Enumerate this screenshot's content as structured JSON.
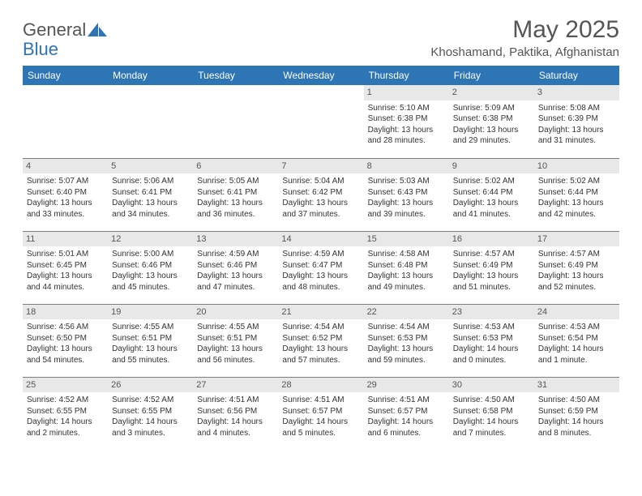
{
  "logo": {
    "text1": "General",
    "text2": "Blue"
  },
  "title": "May 2025",
  "location": "Khoshamand, Paktika, Afghanistan",
  "colors": {
    "header_bg": "#2e75b6",
    "daynum_bg": "#e8e8e8",
    "border": "#7f7f7f"
  },
  "weekdays": [
    "Sunday",
    "Monday",
    "Tuesday",
    "Wednesday",
    "Thursday",
    "Friday",
    "Saturday"
  ],
  "weeks": [
    [
      null,
      null,
      null,
      null,
      {
        "n": "1",
        "sr": "Sunrise: 5:10 AM",
        "ss": "Sunset: 6:38 PM",
        "d1": "Daylight: 13 hours",
        "d2": "and 28 minutes."
      },
      {
        "n": "2",
        "sr": "Sunrise: 5:09 AM",
        "ss": "Sunset: 6:38 PM",
        "d1": "Daylight: 13 hours",
        "d2": "and 29 minutes."
      },
      {
        "n": "3",
        "sr": "Sunrise: 5:08 AM",
        "ss": "Sunset: 6:39 PM",
        "d1": "Daylight: 13 hours",
        "d2": "and 31 minutes."
      }
    ],
    [
      {
        "n": "4",
        "sr": "Sunrise: 5:07 AM",
        "ss": "Sunset: 6:40 PM",
        "d1": "Daylight: 13 hours",
        "d2": "and 33 minutes."
      },
      {
        "n": "5",
        "sr": "Sunrise: 5:06 AM",
        "ss": "Sunset: 6:41 PM",
        "d1": "Daylight: 13 hours",
        "d2": "and 34 minutes."
      },
      {
        "n": "6",
        "sr": "Sunrise: 5:05 AM",
        "ss": "Sunset: 6:41 PM",
        "d1": "Daylight: 13 hours",
        "d2": "and 36 minutes."
      },
      {
        "n": "7",
        "sr": "Sunrise: 5:04 AM",
        "ss": "Sunset: 6:42 PM",
        "d1": "Daylight: 13 hours",
        "d2": "and 37 minutes."
      },
      {
        "n": "8",
        "sr": "Sunrise: 5:03 AM",
        "ss": "Sunset: 6:43 PM",
        "d1": "Daylight: 13 hours",
        "d2": "and 39 minutes."
      },
      {
        "n": "9",
        "sr": "Sunrise: 5:02 AM",
        "ss": "Sunset: 6:44 PM",
        "d1": "Daylight: 13 hours",
        "d2": "and 41 minutes."
      },
      {
        "n": "10",
        "sr": "Sunrise: 5:02 AM",
        "ss": "Sunset: 6:44 PM",
        "d1": "Daylight: 13 hours",
        "d2": "and 42 minutes."
      }
    ],
    [
      {
        "n": "11",
        "sr": "Sunrise: 5:01 AM",
        "ss": "Sunset: 6:45 PM",
        "d1": "Daylight: 13 hours",
        "d2": "and 44 minutes."
      },
      {
        "n": "12",
        "sr": "Sunrise: 5:00 AM",
        "ss": "Sunset: 6:46 PM",
        "d1": "Daylight: 13 hours",
        "d2": "and 45 minutes."
      },
      {
        "n": "13",
        "sr": "Sunrise: 4:59 AM",
        "ss": "Sunset: 6:46 PM",
        "d1": "Daylight: 13 hours",
        "d2": "and 47 minutes."
      },
      {
        "n": "14",
        "sr": "Sunrise: 4:59 AM",
        "ss": "Sunset: 6:47 PM",
        "d1": "Daylight: 13 hours",
        "d2": "and 48 minutes."
      },
      {
        "n": "15",
        "sr": "Sunrise: 4:58 AM",
        "ss": "Sunset: 6:48 PM",
        "d1": "Daylight: 13 hours",
        "d2": "and 49 minutes."
      },
      {
        "n": "16",
        "sr": "Sunrise: 4:57 AM",
        "ss": "Sunset: 6:49 PM",
        "d1": "Daylight: 13 hours",
        "d2": "and 51 minutes."
      },
      {
        "n": "17",
        "sr": "Sunrise: 4:57 AM",
        "ss": "Sunset: 6:49 PM",
        "d1": "Daylight: 13 hours",
        "d2": "and 52 minutes."
      }
    ],
    [
      {
        "n": "18",
        "sr": "Sunrise: 4:56 AM",
        "ss": "Sunset: 6:50 PM",
        "d1": "Daylight: 13 hours",
        "d2": "and 54 minutes."
      },
      {
        "n": "19",
        "sr": "Sunrise: 4:55 AM",
        "ss": "Sunset: 6:51 PM",
        "d1": "Daylight: 13 hours",
        "d2": "and 55 minutes."
      },
      {
        "n": "20",
        "sr": "Sunrise: 4:55 AM",
        "ss": "Sunset: 6:51 PM",
        "d1": "Daylight: 13 hours",
        "d2": "and 56 minutes."
      },
      {
        "n": "21",
        "sr": "Sunrise: 4:54 AM",
        "ss": "Sunset: 6:52 PM",
        "d1": "Daylight: 13 hours",
        "d2": "and 57 minutes."
      },
      {
        "n": "22",
        "sr": "Sunrise: 4:54 AM",
        "ss": "Sunset: 6:53 PM",
        "d1": "Daylight: 13 hours",
        "d2": "and 59 minutes."
      },
      {
        "n": "23",
        "sr": "Sunrise: 4:53 AM",
        "ss": "Sunset: 6:53 PM",
        "d1": "Daylight: 14 hours",
        "d2": "and 0 minutes."
      },
      {
        "n": "24",
        "sr": "Sunrise: 4:53 AM",
        "ss": "Sunset: 6:54 PM",
        "d1": "Daylight: 14 hours",
        "d2": "and 1 minute."
      }
    ],
    [
      {
        "n": "25",
        "sr": "Sunrise: 4:52 AM",
        "ss": "Sunset: 6:55 PM",
        "d1": "Daylight: 14 hours",
        "d2": "and 2 minutes."
      },
      {
        "n": "26",
        "sr": "Sunrise: 4:52 AM",
        "ss": "Sunset: 6:55 PM",
        "d1": "Daylight: 14 hours",
        "d2": "and 3 minutes."
      },
      {
        "n": "27",
        "sr": "Sunrise: 4:51 AM",
        "ss": "Sunset: 6:56 PM",
        "d1": "Daylight: 14 hours",
        "d2": "and 4 minutes."
      },
      {
        "n": "28",
        "sr": "Sunrise: 4:51 AM",
        "ss": "Sunset: 6:57 PM",
        "d1": "Daylight: 14 hours",
        "d2": "and 5 minutes."
      },
      {
        "n": "29",
        "sr": "Sunrise: 4:51 AM",
        "ss": "Sunset: 6:57 PM",
        "d1": "Daylight: 14 hours",
        "d2": "and 6 minutes."
      },
      {
        "n": "30",
        "sr": "Sunrise: 4:50 AM",
        "ss": "Sunset: 6:58 PM",
        "d1": "Daylight: 14 hours",
        "d2": "and 7 minutes."
      },
      {
        "n": "31",
        "sr": "Sunrise: 4:50 AM",
        "ss": "Sunset: 6:59 PM",
        "d1": "Daylight: 14 hours",
        "d2": "and 8 minutes."
      }
    ]
  ]
}
